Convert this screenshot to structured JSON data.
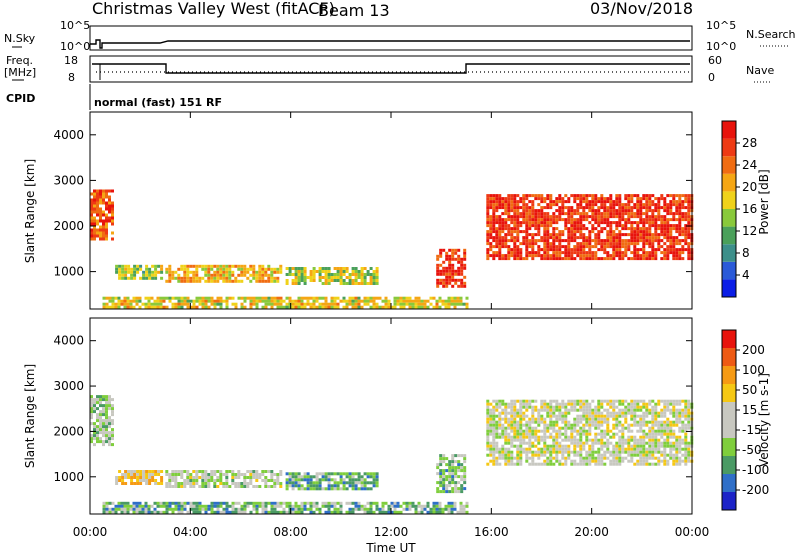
{
  "header": {
    "site": "Christmas Valley West (fitACF)",
    "beam": "Beam 13",
    "date": "03/Nov/2018"
  },
  "strip_labels": {
    "nsky": "N.Sky",
    "nsearch": "N.Search",
    "freq_line1": "Freq.",
    "freq_line2": "[MHz]",
    "nave": "Nave",
    "cpid": "CPID",
    "cpid_value": "normal (fast) 151 RF"
  },
  "noise_axis": {
    "left_ticks": [
      "10^5",
      "10^0"
    ],
    "right_ticks": [
      "10^5",
      "10^0"
    ]
  },
  "freq_axis": {
    "left_ticks": [
      "18",
      "8"
    ],
    "right_ticks": [
      "60",
      "0"
    ]
  },
  "chart_data": [
    {
      "type": "heatmap",
      "name": "power",
      "xlabel": "",
      "ylabel": "Slant Range [km]",
      "xlim": [
        0,
        24
      ],
      "ylim": [
        180,
        4500
      ],
      "yticks": [
        1000,
        2000,
        3000,
        4000
      ],
      "colorbar": {
        "label": "Power [dB]",
        "ticks": [
          "4",
          "8",
          "12",
          "16",
          "20",
          "24",
          "28"
        ],
        "colors": [
          "#0b1ee6",
          "#2a5ad8",
          "#3c8f8a",
          "#4aa05a",
          "#89c93b",
          "#f0d21a",
          "#f5a614",
          "#f06c12",
          "#ee3a14",
          "#e8130c"
        ]
      },
      "regions": [
        {
          "t0": 0.0,
          "t1": 0.9,
          "r0": 1700,
          "r1": 2800,
          "level": 0.8
        },
        {
          "t0": 1.0,
          "t1": 2.8,
          "r0": 850,
          "r1": 1150,
          "level": 0.45
        },
        {
          "t0": 3.0,
          "t1": 7.6,
          "r0": 800,
          "r1": 1150,
          "level": 0.62
        },
        {
          "t0": 7.8,
          "t1": 11.5,
          "r0": 750,
          "r1": 1100,
          "level": 0.5
        },
        {
          "t0": 0.5,
          "t1": 15.0,
          "r0": 230,
          "r1": 450,
          "level": 0.55
        },
        {
          "t0": 13.8,
          "t1": 14.9,
          "r0": 700,
          "r1": 1500,
          "level": 0.9
        },
        {
          "t0": 15.8,
          "t1": 24.0,
          "r0": 1300,
          "r1": 2700,
          "level": 0.88
        }
      ]
    },
    {
      "type": "heatmap",
      "name": "velocity",
      "xlabel": "Time UT",
      "ylabel": "Slant Range [km]",
      "xlim": [
        0,
        24
      ],
      "ylim": [
        180,
        4500
      ],
      "yticks": [
        1000,
        2000,
        3000,
        4000
      ],
      "xticks": [
        "00:00",
        "04:00",
        "08:00",
        "12:00",
        "16:00",
        "20:00",
        "00:00"
      ],
      "colorbar": {
        "label": "Velocity [m s-1]",
        "ticks": [
          "200",
          "100",
          "50",
          "15",
          "-15",
          "-50",
          "-100",
          "-200"
        ],
        "colors": [
          "#1c23c8",
          "#2f6fc8",
          "#4a9a64",
          "#7fce3c",
          "#c8c8c0",
          "#c8c8c0",
          "#f5c814",
          "#f59a14",
          "#ee5a14",
          "#e8130c"
        ]
      },
      "regions": [
        {
          "t0": 0.0,
          "t1": 0.9,
          "r0": 1700,
          "r1": 2800,
          "level": 0.42
        },
        {
          "t0": 1.0,
          "t1": 2.8,
          "r0": 850,
          "r1": 1150,
          "level": 0.62
        },
        {
          "t0": 3.0,
          "t1": 7.6,
          "r0": 800,
          "r1": 1150,
          "level": 0.45
        },
        {
          "t0": 7.8,
          "t1": 11.5,
          "r0": 750,
          "r1": 1100,
          "level": 0.3
        },
        {
          "t0": 0.5,
          "t1": 15.0,
          "r0": 230,
          "r1": 450,
          "level": 0.32
        },
        {
          "t0": 13.8,
          "t1": 14.9,
          "r0": 700,
          "r1": 1500,
          "level": 0.36
        },
        {
          "t0": 15.8,
          "t1": 24.0,
          "r0": 1300,
          "r1": 2700,
          "level": 0.5
        }
      ]
    }
  ]
}
